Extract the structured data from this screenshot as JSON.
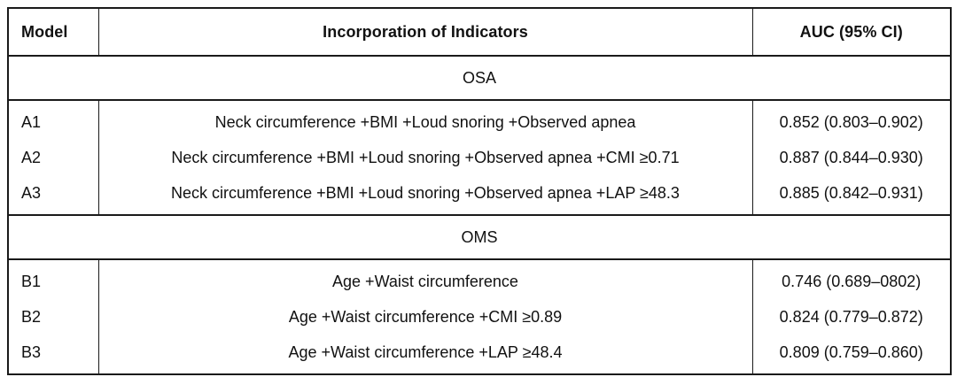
{
  "table": {
    "columns": [
      "Model",
      "Incorporation of Indicators",
      "AUC (95% CI)"
    ],
    "sections": [
      {
        "label": "OSA",
        "rows": [
          {
            "model": "A1",
            "indicators": "Neck circumference +BMI +Loud snoring +Observed apnea",
            "auc": "0.852 (0.803–0.902)"
          },
          {
            "model": "A2",
            "indicators": "Neck circumference +BMI +Loud snoring +Observed apnea +CMI ≥0.71",
            "auc": "0.887 (0.844–0.930)"
          },
          {
            "model": "A3",
            "indicators": "Neck circumference +BMI +Loud snoring +Observed apnea +LAP ≥48.3",
            "auc": "0.885 (0.842–0.931)"
          }
        ]
      },
      {
        "label": "OMS",
        "rows": [
          {
            "model": "B1",
            "indicators": "Age +Waist circumference",
            "auc": "0.746 (0.689–0802)"
          },
          {
            "model": "B2",
            "indicators": "Age +Waist circumference +CMI ≥0.89",
            "auc": "0.824 (0.779–0.872)"
          },
          {
            "model": "B3",
            "indicators": "Age +Waist circumference +LAP ≥48.4",
            "auc": "0.809 (0.759–0.860)"
          }
        ]
      }
    ],
    "colors": {
      "border": "#1a1a1a",
      "text": "#111111",
      "background": "#ffffff"
    }
  }
}
